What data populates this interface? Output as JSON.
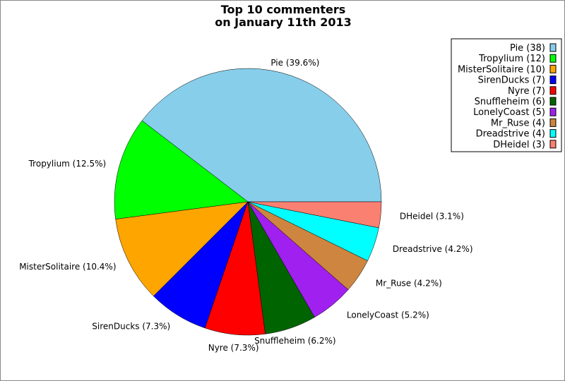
{
  "chart_data": {
    "type": "pie",
    "title": "Top 10 commenters\non January 11th 2013",
    "title_lines": [
      "Top 10 commenters",
      "on January 11th 2013"
    ],
    "legend_position": "top-right",
    "start_angle_deg": 0,
    "direction": "counterclockwise",
    "slices": [
      {
        "name": "Pie",
        "value": 38,
        "percent": "39.6%",
        "color": "#87CEEB",
        "legend": "Pie (38)",
        "label": "Pie (39.6%)"
      },
      {
        "name": "Tropylium",
        "value": 12,
        "percent": "12.5%",
        "color": "#00FF00",
        "legend": "Tropylium (12)",
        "label": "Tropylium (12.5%)"
      },
      {
        "name": "MisterSolitaire",
        "value": 10,
        "percent": "10.4%",
        "color": "#FFA500",
        "legend": "MisterSolitaire (10)",
        "label": "MisterSolitaire (10.4%)"
      },
      {
        "name": "SirenDucks",
        "value": 7,
        "percent": "7.3%",
        "color": "#0000FF",
        "legend": "SirenDucks (7)",
        "label": "SirenDucks (7.3%)"
      },
      {
        "name": "Nyre",
        "value": 7,
        "percent": "7.3%",
        "color": "#FF0000",
        "legend": "Nyre (7)",
        "label": "Nyre (7.3%)"
      },
      {
        "name": "Snuffleheim",
        "value": 6,
        "percent": "6.2%",
        "color": "#006400",
        "legend": "Snuffleheim (6)",
        "label": "Snuffleheim (6.2%)"
      },
      {
        "name": "LonelyCoast",
        "value": 5,
        "percent": "5.2%",
        "color": "#A020F0",
        "legend": "LonelyCoast (5)",
        "label": "LonelyCoast (5.2%)"
      },
      {
        "name": "Mr_Ruse",
        "value": 4,
        "percent": "4.2%",
        "color": "#CD853F",
        "legend": "Mr_Ruse (4)",
        "label": "Mr_Ruse (4.2%)"
      },
      {
        "name": "Dreadstrive",
        "value": 4,
        "percent": "4.2%",
        "color": "#00FFFF",
        "legend": "Dreadstrive (4)",
        "label": "Dreadstrive (4.2%)"
      },
      {
        "name": "DHeidel",
        "value": 3,
        "percent": "3.1%",
        "color": "#FA8072",
        "legend": "DHeidel (3)",
        "label": "DHeidel (3.1%)"
      }
    ]
  }
}
